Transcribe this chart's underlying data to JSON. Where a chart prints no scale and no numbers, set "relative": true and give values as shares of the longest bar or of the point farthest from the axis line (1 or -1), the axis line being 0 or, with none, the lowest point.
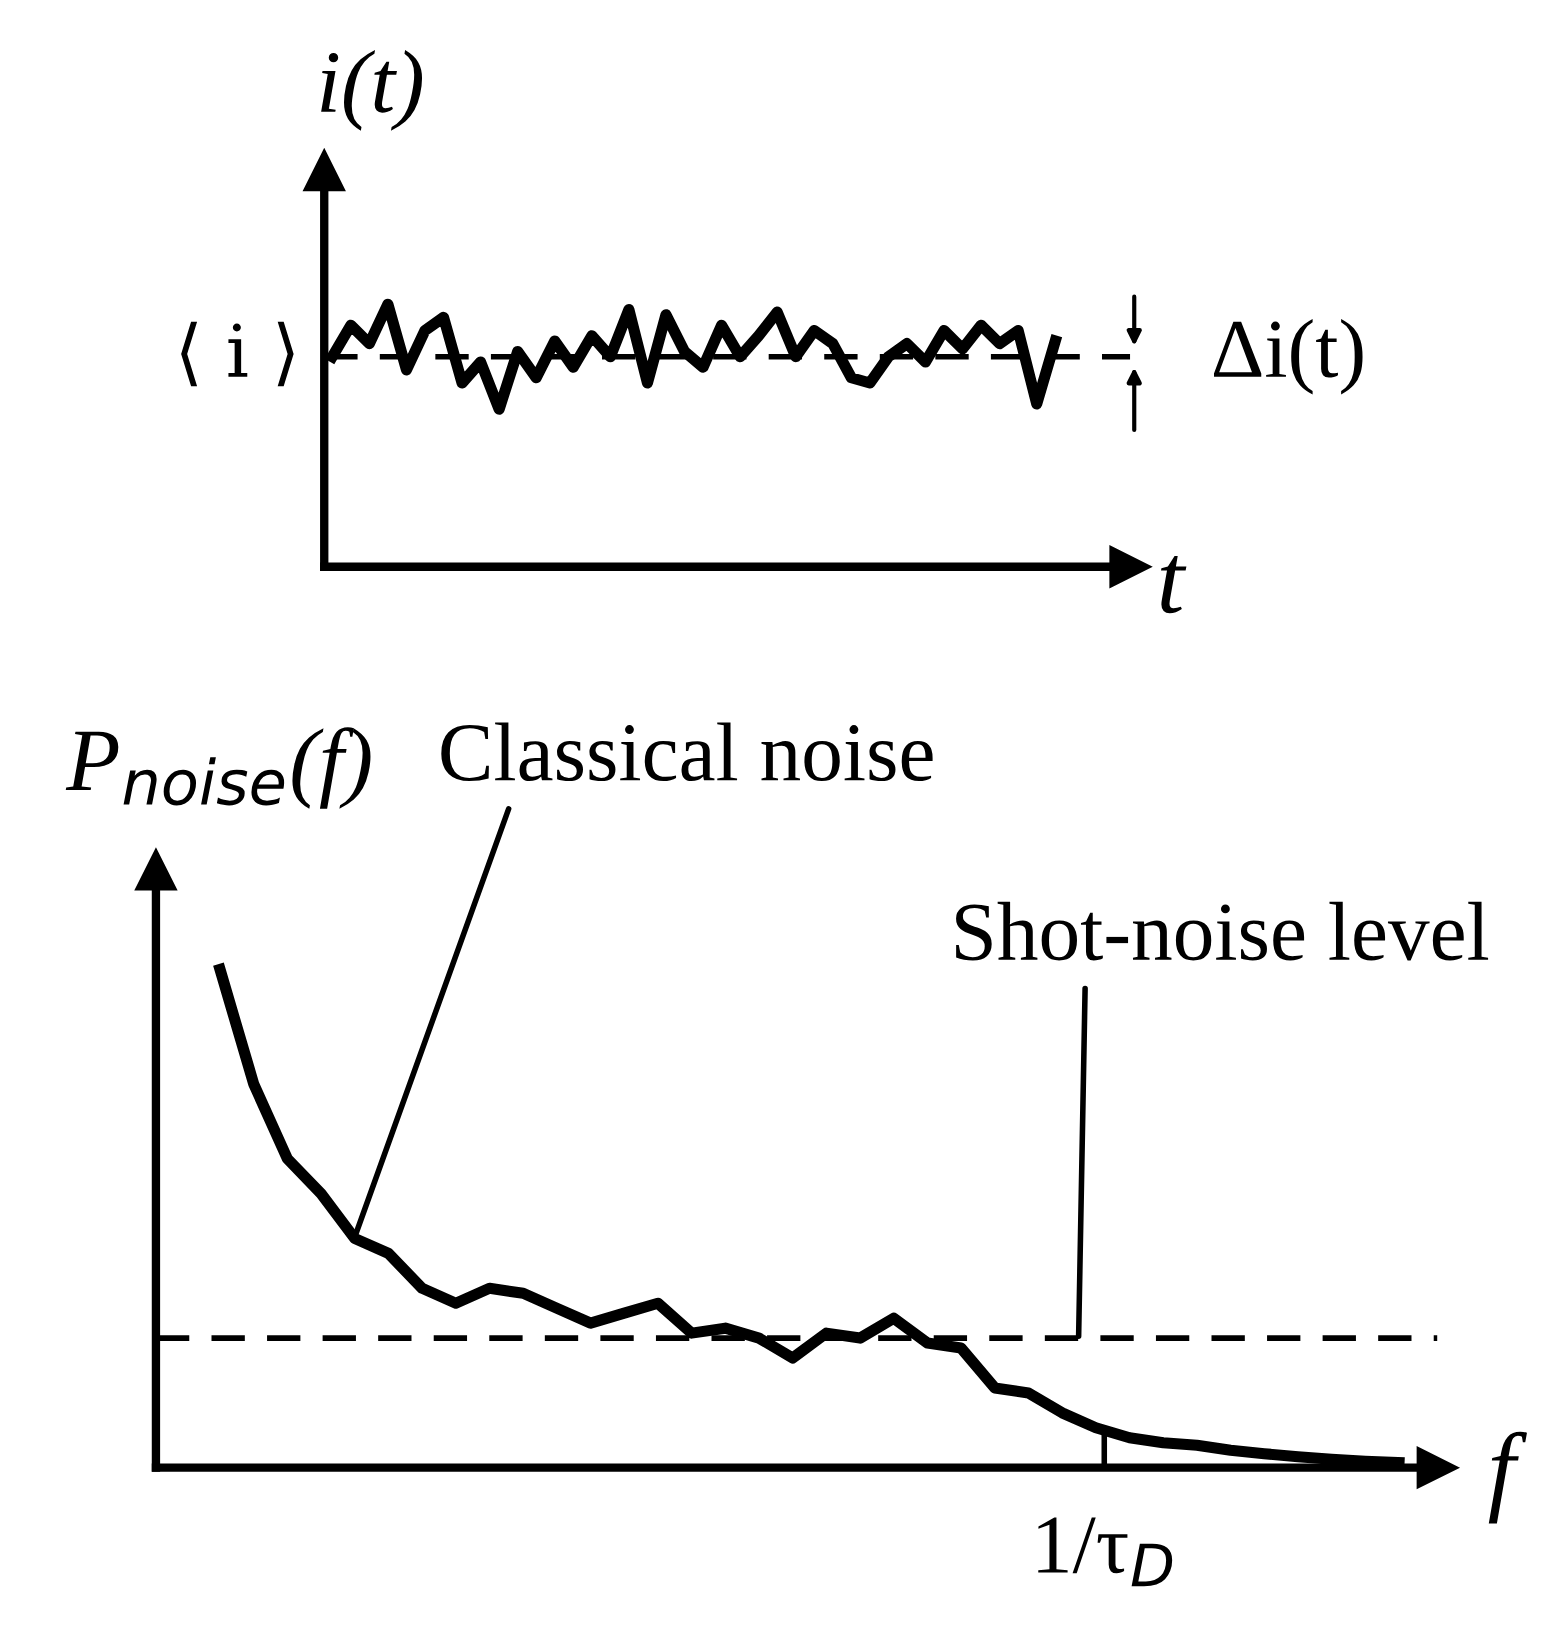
{
  "chart_data": [
    {
      "type": "line",
      "relative": true,
      "ylabel": "i(t)",
      "xlabel": "t",
      "color": "#000000",
      "line_style": "solid",
      "categories": [
        null,
        null,
        null,
        null,
        null,
        null,
        null,
        null,
        null,
        null,
        null,
        null,
        null,
        null,
        null,
        null,
        null,
        null,
        null,
        null,
        null,
        null,
        null,
        null,
        null,
        null,
        null,
        null,
        null,
        null,
        null,
        null,
        null,
        null,
        null,
        null,
        null,
        null,
        null,
        null
      ],
      "values": [
        0.8,
        0.92,
        0.85,
        1.0,
        0.75,
        0.9,
        0.95,
        0.7,
        0.78,
        0.6,
        0.82,
        0.72,
        0.86,
        0.76,
        0.88,
        0.8,
        0.98,
        0.7,
        0.96,
        0.82,
        0.76,
        0.92,
        0.8,
        0.88,
        0.97,
        0.8,
        0.9,
        0.85,
        0.72,
        0.7,
        0.8,
        0.85,
        0.78,
        0.9,
        0.83,
        0.92,
        0.85,
        0.9,
        0.62,
        0.86
      ],
      "ref_lines": [
        {
          "axis": "y",
          "value": 0.8,
          "label": "⟨ i ⟩",
          "line_style": "dashed",
          "color": "#000000"
        }
      ],
      "annotations": [
        "Δi(t)"
      ]
    },
    {
      "type": "line",
      "relative": true,
      "ylabel": "P$_{noise}$(f)",
      "xlabel": "f",
      "color": "#000000",
      "line_style": "solid",
      "categories": [
        null,
        null,
        null,
        null,
        null,
        null,
        null,
        null,
        null,
        null,
        null,
        null,
        null,
        null,
        null,
        null,
        null,
        null,
        null,
        null,
        null,
        null,
        null,
        null,
        null,
        null,
        null,
        null,
        null,
        null,
        null,
        null,
        null,
        null,
        null,
        null
      ],
      "values": [
        1.0,
        0.77,
        0.62,
        0.55,
        0.46,
        0.43,
        0.36,
        0.33,
        0.36,
        0.35,
        0.32,
        0.29,
        0.31,
        0.33,
        0.27,
        0.28,
        0.26,
        0.22,
        0.27,
        0.26,
        0.3,
        0.25,
        0.24,
        0.16,
        0.15,
        0.11,
        0.08,
        0.06,
        0.05,
        0.045,
        0.035,
        0.028,
        0.022,
        0.017,
        0.013,
        0.01
      ],
      "ref_lines": [
        {
          "axis": "y",
          "value": 0.26,
          "line_style": "dashed",
          "color": "#000000"
        }
      ],
      "annotations": [
        "Classical noise",
        "Shot-noise level",
        "1/τ$_{D}$"
      ]
    }
  ]
}
